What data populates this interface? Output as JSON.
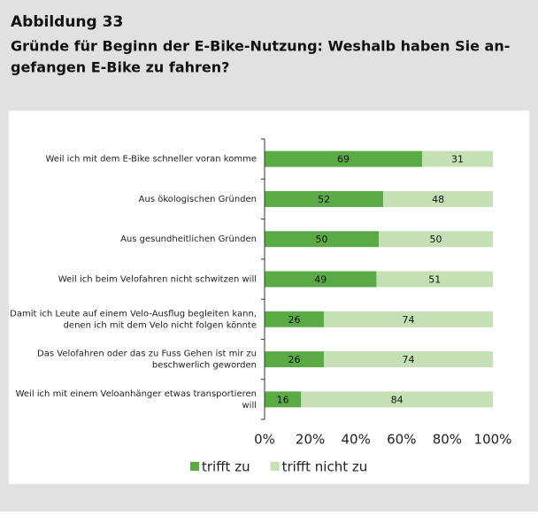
{
  "chart_data": {
    "type": "stacked_barh",
    "title": "Abbildung 33",
    "subtitle": [
      "Gründe für Beginn der E-Bike-Nutzung: Weshalb haben Sie an-",
      "gefangen E-Bike zu fahren?"
    ],
    "categories": [
      [
        "Weil ich mit dem E-Bike schneller voran komme"
      ],
      [
        "Aus ökologischen Gründen"
      ],
      [
        "Aus gesundheitlichen Gründen"
      ],
      [
        "Weil ich beim Velofahren nicht schwitzen will"
      ],
      [
        "Damit ich Leute auf einem Velo-Ausflug begleiten kann,",
        "denen ich mit dem Velo nicht folgen könnte"
      ],
      [
        "Das Velofahren oder das zu Fuss Gehen ist mir zu",
        "beschwerlich geworden"
      ],
      [
        "Weil ich mit einem Veloanhänger etwas transportieren",
        "will"
      ]
    ],
    "series": [
      {
        "name": "trifft zu",
        "color": "#5aaa46",
        "values": [
          69,
          52,
          50,
          49,
          26,
          26,
          16
        ]
      },
      {
        "name": "trifft nicht zu",
        "color": "#c5e0b4",
        "values": [
          31,
          48,
          50,
          51,
          74,
          74,
          84
        ]
      }
    ],
    "xlim": [
      0,
      100
    ],
    "xticks": [
      {
        "value": 0,
        "label": "0%"
      },
      {
        "value": 20,
        "label": "20%"
      },
      {
        "value": 40,
        "label": "40%"
      },
      {
        "value": 60,
        "label": "60%"
      },
      {
        "value": 80,
        "label": "80%"
      },
      {
        "value": 100,
        "label": "100%"
      }
    ],
    "legend": "bottom"
  }
}
